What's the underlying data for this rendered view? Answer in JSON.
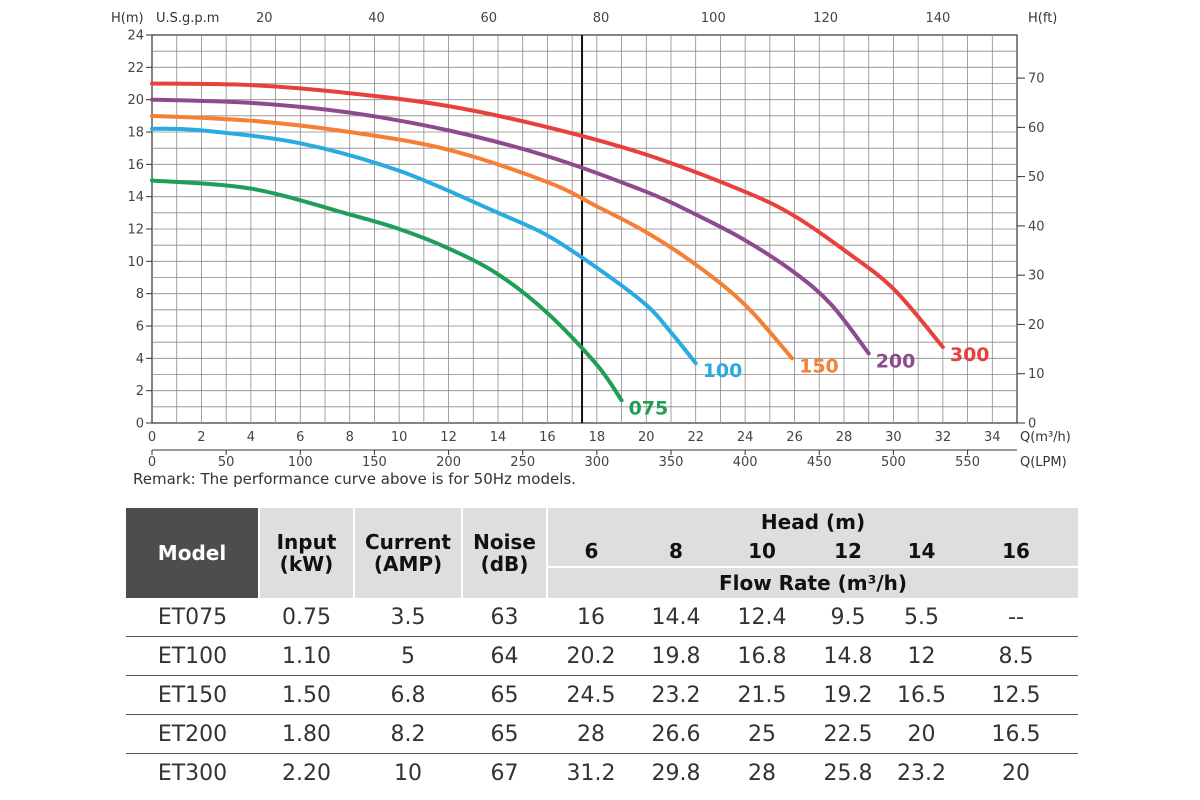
{
  "chart_data": {
    "type": "line",
    "x_label_right": "Q(m³/h)",
    "y_label_left": "H(m)",
    "y_label_right": "H(ft)",
    "top_axis_label": "U.S.g.p.m",
    "bottom2_axis_label": "Q(LPM)",
    "xlim": [
      0,
      35
    ],
    "ylim": [
      0,
      24
    ],
    "x_ticks": [
      0,
      2,
      4,
      6,
      8,
      10,
      12,
      14,
      16,
      18,
      20,
      22,
      24,
      26,
      28,
      30,
      32,
      34
    ],
    "y_ticks": [
      0,
      2,
      4,
      6,
      8,
      10,
      12,
      14,
      16,
      18,
      20,
      22,
      24
    ],
    "gpm_ticks": [
      20,
      40,
      60,
      80,
      100,
      120,
      140
    ],
    "ft_ticks": [
      0,
      10,
      20,
      30,
      40,
      50,
      60,
      70
    ],
    "lpm_ticks": [
      0,
      50,
      100,
      150,
      200,
      250,
      300,
      350,
      400,
      450,
      500,
      550
    ],
    "reference_line_x": 17.4,
    "series": [
      {
        "name": "075",
        "color": "#1e9e57",
        "x": [
          0,
          4,
          8,
          10,
          12,
          14,
          16,
          18,
          19
        ],
        "y": [
          15,
          14.5,
          12.9,
          12.0,
          10.8,
          9.2,
          6.8,
          3.6,
          1.4
        ]
      },
      {
        "name": "100",
        "color": "#29abe2",
        "x": [
          0,
          2,
          6,
          10,
          14,
          16,
          18,
          20,
          21,
          22
        ],
        "y": [
          18.2,
          18.1,
          17.3,
          15.6,
          13.0,
          11.6,
          9.6,
          7.3,
          5.6,
          3.7
        ]
      },
      {
        "name": "150",
        "color": "#f47f35",
        "x": [
          0,
          4,
          8,
          12,
          16,
          18,
          20,
          22,
          24,
          25.9
        ],
        "y": [
          19,
          18.7,
          18.0,
          16.9,
          14.9,
          13.4,
          11.8,
          9.8,
          7.3,
          4.0
        ]
      },
      {
        "name": "200",
        "color": "#8e4a8f",
        "x": [
          0,
          4,
          8,
          12,
          16,
          20,
          22,
          24,
          26,
          27.5,
          29
        ],
        "y": [
          20,
          19.8,
          19.2,
          18.1,
          16.5,
          14.3,
          12.9,
          11.3,
          9.3,
          7.3,
          4.3
        ]
      },
      {
        "name": "300",
        "color": "#e8403a",
        "x": [
          0,
          4,
          8,
          12,
          16,
          20,
          24,
          26,
          28,
          30,
          32
        ],
        "y": [
          21,
          20.9,
          20.4,
          19.6,
          18.3,
          16.6,
          14.3,
          12.8,
          10.7,
          8.3,
          4.7
        ]
      }
    ]
  },
  "remark": "Remark: The performance curve above is for 50Hz models.",
  "table": {
    "model_header": "Model",
    "input_header_1": "Input",
    "input_header_2": "(kW)",
    "current_header_1": "Current",
    "current_header_2": "(AMP)",
    "noise_header_1": "Noise",
    "noise_header_2": "(dB)",
    "head_header": "Head (m)",
    "flow_header": "Flow Rate (m³/h)",
    "head_values": [
      "6",
      "8",
      "10",
      "12",
      "14",
      "16"
    ],
    "rows": [
      [
        "ET075",
        "0.75",
        "3.5",
        "63",
        "16",
        "14.4",
        "12.4",
        "9.5",
        "5.5",
        "--"
      ],
      [
        "ET100",
        "1.10",
        "5",
        "64",
        "20.2",
        "19.8",
        "16.8",
        "14.8",
        "12",
        "8.5"
      ],
      [
        "ET150",
        "1.50",
        "6.8",
        "65",
        "24.5",
        "23.2",
        "21.5",
        "19.2",
        "16.5",
        "12.5"
      ],
      [
        "ET200",
        "1.80",
        "8.2",
        "65",
        "28",
        "26.6",
        "25",
        "22.5",
        "20",
        "16.5"
      ],
      [
        "ET300",
        "2.20",
        "10",
        "67",
        "31.2",
        "29.8",
        "28",
        "25.8",
        "23.2",
        "20"
      ]
    ]
  }
}
